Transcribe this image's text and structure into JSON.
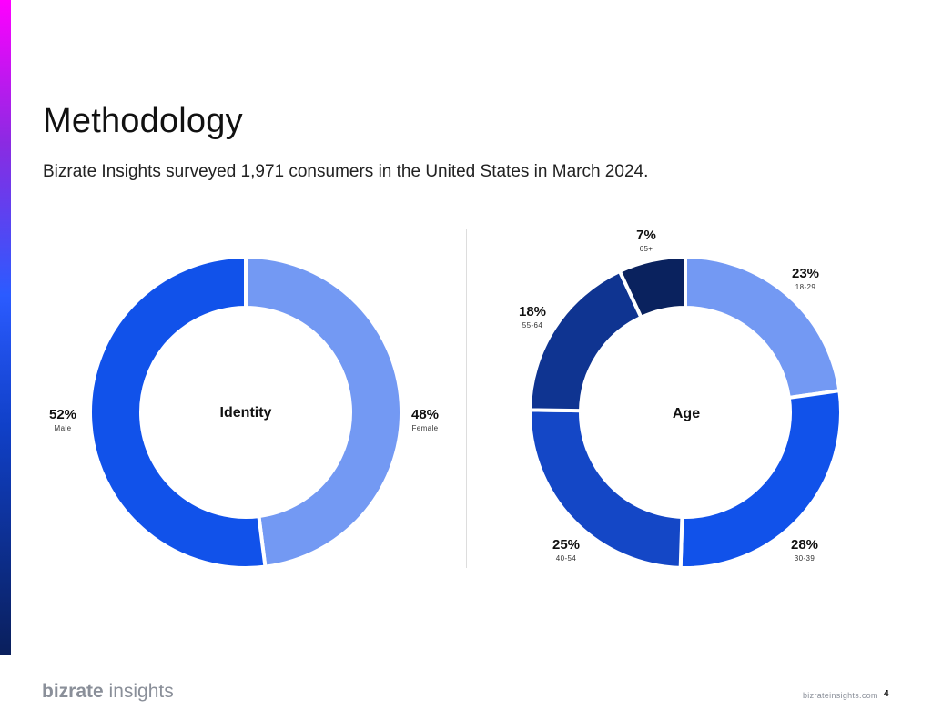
{
  "page": {
    "title": "Methodology",
    "subtitle": "Bizrate Insights surveyed 1,971 consumers in the United States in March 2024.",
    "brand_bold": "bizrate",
    "brand_light": " insights",
    "footer_url": "bizrateinsights.com",
    "page_number": "4",
    "accent_colors": [
      "#ff00ff",
      "#2b5bff",
      "#0a1f5c"
    ]
  },
  "chart_data": [
    {
      "type": "pie",
      "center_label": "Identity",
      "categories": [
        "Female",
        "Male"
      ],
      "values": [
        48,
        52
      ],
      "value_labels": [
        "48%",
        "52%"
      ],
      "colors": [
        "#7399f3",
        "#1152ea"
      ]
    },
    {
      "type": "pie",
      "center_label": "Age",
      "categories": [
        "18-29",
        "30-39",
        "40-54",
        "55-64",
        "65+"
      ],
      "values": [
        23,
        28,
        25,
        18,
        7
      ],
      "value_labels": [
        "23%",
        "28%",
        "25%",
        "18%",
        "7%"
      ],
      "colors": [
        "#7399f3",
        "#1152ea",
        "#1447c6",
        "#0f3491",
        "#0a225e"
      ]
    }
  ]
}
